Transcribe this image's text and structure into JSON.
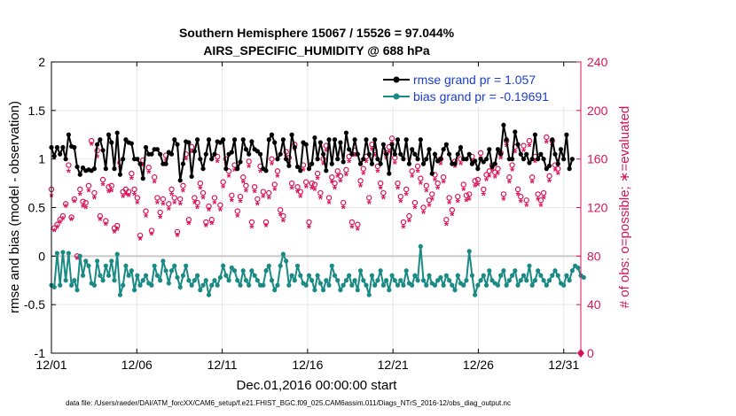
{
  "chart_data": {
    "type": "line",
    "title": "Southern Hemisphere 15067 / 15526 = 97.044%",
    "subtitle": "AIRS_SPECIFIC_HUMIDITY @ 688 hPa",
    "xlabel": "Dec.01,2016 00:00:00 start",
    "ylabel": "rmse and bias (model - observation)",
    "y2label": "# of obs: o=possible; ∗=evaluated",
    "footnote": "data file: /Users/raeder/DAI/ATM_forcXX/CAM6_setup/f.e21.FHIST_BGC.f09_025.CAM6assim.011/Diags_NTrS_2016-12/obs_diag_output.nc",
    "x_ticks": [
      "12/01",
      "12/06",
      "12/11",
      "12/16",
      "12/21",
      "12/26",
      "12/31"
    ],
    "x_tick_days": [
      0,
      5,
      10,
      15,
      20,
      25,
      30
    ],
    "x_range": [
      0,
      31
    ],
    "ylim": [
      -1,
      2
    ],
    "y_ticks": [
      "-1",
      "-0.5",
      "0",
      "0.5",
      "1",
      "1.5",
      "2"
    ],
    "y2lim": [
      0,
      240
    ],
    "y2_ticks": [
      "0",
      "40",
      "80",
      "120",
      "160",
      "200",
      "240"
    ],
    "colors": {
      "rmse": "#000000",
      "bias": "#1a8a84",
      "counts": "#d8135a",
      "legend_text": "#1a3ecc",
      "zero_line": "#c8c8c8"
    },
    "legend_position": "top-right",
    "series": [
      {
        "name": "rmse grand pr = 1.057",
        "key": "rmse",
        "values": [
          1.12,
          1.03,
          1.12,
          1.05,
          1.12,
          1.0,
          1.25,
          1.13,
          1.12,
          0.92,
          0.84,
          0.91,
          0.88,
          0.89,
          0.88,
          0.9,
          1.15,
          1.2,
          1.09,
          0.9,
          1.25,
          1.17,
          0.9,
          1.27,
          0.84,
          1.0,
          1.2,
          1.17,
          1.16,
          1.0,
          1.0,
          0.95,
          0.8,
          1.12,
          1.05,
          1.05,
          1.1,
          1.1,
          1.05,
          0.95,
          0.95,
          1.07,
          1.05,
          1.2,
          1.15,
          0.78,
          0.95,
          1.18,
          1.17,
          0.82,
          1.08,
          1.2,
          1.0,
          0.9,
          1.05,
          1.2,
          1.0,
          1.05,
          1.18,
          1.17,
          1.2,
          0.9,
          1.05,
          1.07,
          1.2,
          0.9,
          0.97,
          1.2,
          1.1,
          1.05,
          1.18,
          1.1,
          1.08,
          1.05,
          0.9,
          0.88,
          1.2,
          1.25,
          1.17,
          1.0,
          1.05,
          1.2,
          1.0,
          0.93,
          1.25,
          1.12,
          0.92,
          0.88,
          1.17,
          1.15,
          0.9,
          0.95,
          1.22,
          1.0,
          1.17,
          1.05,
          0.88,
          1.2,
          0.95,
          1.2,
          1.0,
          1.17,
          0.97,
          1.27,
          1.1,
          1.05,
          1.2,
          1.05,
          0.95,
          1.0,
          1.2,
          1.05,
          0.95,
          1.2,
          1.0,
          0.95,
          1.15,
          1.05,
          0.85,
          1.15,
          1.05,
          1.2,
          1.05,
          1.0,
          1.2,
          0.95,
          1.1,
          1.05,
          1.0,
          1.2,
          0.95,
          1.0,
          1.1,
          0.85,
          1.05,
          0.98,
          1.0,
          1.1,
          1.15,
          1.05,
          0.95,
          0.95,
          1.05,
          1.12,
          1.0,
          1.0,
          1.05,
          0.95,
          0.98,
          0.9,
          1.0,
          0.97,
          1.0,
          1.1,
          0.92,
          0.95,
          1.1,
          1.05,
          1.35,
          1.2,
          1.0,
          1.0,
          1.28,
          1.15,
          1.05,
          1.0,
          1.05,
          0.96,
          1.0,
          1.25,
          1.0,
          1.05,
          1.0,
          0.9,
          0.93,
          1.2,
          1.05,
          0.95,
          1.1,
          1.0,
          1.25,
          0.9,
          1.0
        ]
      },
      {
        "name": "bias grand pr = -0.19691",
        "key": "bias",
        "values": [
          -0.3,
          -0.32,
          0.03,
          -0.3,
          0.04,
          -0.25,
          0.03,
          -0.3,
          -0.25,
          -0.35,
          0.0,
          -0.2,
          -0.05,
          -0.1,
          -0.28,
          -0.3,
          -0.05,
          -0.2,
          -0.25,
          -0.1,
          -0.2,
          -0.05,
          -0.25,
          0.02,
          -0.4,
          -0.3,
          -0.1,
          -0.2,
          -0.15,
          -0.35,
          -0.2,
          -0.3,
          -0.25,
          -0.2,
          -0.28,
          -0.3,
          -0.1,
          -0.2,
          -0.25,
          -0.05,
          -0.15,
          -0.28,
          -0.15,
          -0.1,
          -0.22,
          -0.32,
          -0.2,
          -0.1,
          -0.25,
          -0.3,
          -0.25,
          -0.2,
          -0.35,
          -0.3,
          -0.25,
          -0.4,
          -0.3,
          -0.25,
          -0.3,
          -0.22,
          -0.1,
          -0.2,
          -0.25,
          -0.12,
          -0.15,
          -0.25,
          -0.3,
          -0.15,
          -0.25,
          -0.3,
          -0.15,
          -0.2,
          -0.25,
          -0.3,
          -0.3,
          -0.15,
          -0.1,
          -0.25,
          -0.35,
          -0.3,
          -0.1,
          0.02,
          -0.05,
          -0.3,
          -0.2,
          -0.25,
          -0.1,
          -0.2,
          -0.28,
          -0.3,
          -0.2,
          -0.25,
          -0.35,
          -0.2,
          -0.28,
          -0.35,
          -0.25,
          -0.3,
          -0.1,
          -0.2,
          -0.25,
          -0.35,
          -0.3,
          -0.25,
          -0.2,
          -0.3,
          -0.25,
          -0.35,
          -0.15,
          -0.25,
          -0.3,
          -0.4,
          -0.2,
          -0.3,
          -0.25,
          -0.15,
          -0.3,
          -0.25,
          -0.35,
          -0.2,
          -0.25,
          -0.3,
          -0.25,
          -0.3,
          -0.15,
          -0.28,
          -0.3,
          -0.2,
          -0.25,
          0.1,
          -0.25,
          -0.3,
          -0.2,
          -0.28,
          -0.3,
          -0.25,
          -0.22,
          -0.3,
          -0.2,
          -0.25,
          -0.3,
          -0.35,
          -0.2,
          -0.28,
          -0.3,
          -0.25,
          0.05,
          -0.2,
          -0.4,
          -0.3,
          -0.25,
          -0.2,
          -0.3,
          -0.15,
          -0.25,
          -0.28,
          -0.3,
          -0.2,
          -0.15,
          -0.3,
          -0.25,
          -0.2,
          -0.15,
          -0.3,
          -0.25,
          -0.2,
          -0.25,
          -0.1,
          -0.3,
          -0.25,
          -0.15,
          -0.2,
          -0.25,
          -0.3,
          -0.25,
          -0.2,
          -0.15,
          -0.2,
          -0.28,
          -0.3,
          -0.2,
          -0.25,
          -0.15,
          -0.1,
          -0.12,
          -0.2,
          -0.22
        ]
      },
      {
        "name": "obs possible (o)",
        "key": "possible",
        "values": [
          135,
          103,
          106,
          110,
          113,
          123,
          155,
          112,
          127,
          80,
          135,
          125,
          124,
          138,
          175,
          132,
          167,
          113,
          143,
          109,
          137,
          138,
          103,
          105,
          157,
          133,
          135,
          133,
          148,
          135,
          128,
          97,
          159,
          117,
          153,
          101,
          145,
          128,
          116,
          127,
          163,
          123,
          135,
          128,
          100,
          127,
          138,
          164,
          110,
          170,
          128,
          124,
          140,
          132,
          108,
          121,
          110,
          128,
          162,
          122,
          141,
          160,
          150,
          130,
          155,
          117,
          129,
          145,
          138,
          158,
          108,
          137,
          127,
          154,
          133,
          108,
          132,
          160,
          139,
          150,
          118,
          113,
          166,
          161,
          140,
          172,
          137,
          133,
          155,
          141,
          108,
          140,
          139,
          148,
          132,
          160,
          171,
          128,
          145,
          140,
          150,
          146,
          124,
          151,
          162,
          108,
          167,
          106,
          142,
          152,
          162,
          128,
          172,
          167,
          154,
          140,
          132,
          165,
          170,
          177,
          161,
          140,
          129,
          108,
          135,
          113,
          150,
          124,
          154,
          144,
          120,
          138,
          126,
          131,
          147,
          140,
          160,
          145,
          110,
          128,
          118,
          158,
          129,
          160,
          139,
          130,
          131,
          162,
          142,
          143,
          165,
          135,
          147,
          150,
          155,
          149,
          152,
          165,
          131,
          175,
          145,
          155,
          170,
          135,
          129,
          171,
          126,
          175,
          145,
          162,
          131,
          126,
          132,
          178,
          146,
          175,
          155,
          152
        ]
      },
      {
        "name": "obs evaluated (∗)",
        "key": "evaluated",
        "values": [
          130,
          101,
          104,
          108,
          111,
          121,
          150,
          110,
          125,
          78,
          131,
          121,
          120,
          134,
          172,
          128,
          162,
          110,
          139,
          106,
          133,
          134,
          100,
          102,
          153,
          129,
          131,
          130,
          144,
          131,
          124,
          94,
          155,
          113,
          149,
          98,
          141,
          124,
          112,
          123,
          159,
          119,
          131,
          124,
          97,
          123,
          134,
          160,
          107,
          166,
          124,
          120,
          136,
          128,
          105,
          118,
          107,
          124,
          158,
          118,
          137,
          156,
          146,
          126,
          151,
          113,
          125,
          141,
          134,
          154,
          104,
          133,
          123,
          150,
          129,
          105,
          128,
          156,
          135,
          146,
          114,
          109,
          162,
          157,
          136,
          168,
          133,
          129,
          151,
          137,
          104,
          136,
          135,
          144,
          128,
          156,
          167,
          124,
          141,
          136,
          146,
          142,
          120,
          147,
          158,
          104,
          163,
          102,
          138,
          148,
          158,
          124,
          168,
          163,
          150,
          136,
          128,
          161,
          166,
          173,
          157,
          136,
          125,
          104,
          131,
          109,
          146,
          120,
          150,
          140,
          116,
          134,
          122,
          127,
          143,
          136,
          156,
          141,
          106,
          124,
          114,
          154,
          125,
          156,
          135,
          126,
          127,
          158,
          138,
          139,
          161,
          131,
          143,
          146,
          151,
          145,
          148,
          161,
          127,
          171,
          141,
          151,
          166,
          131,
          125,
          167,
          122,
          171,
          141,
          158,
          127,
          122,
          128,
          174,
          142,
          171,
          151,
          148
        ]
      }
    ]
  }
}
